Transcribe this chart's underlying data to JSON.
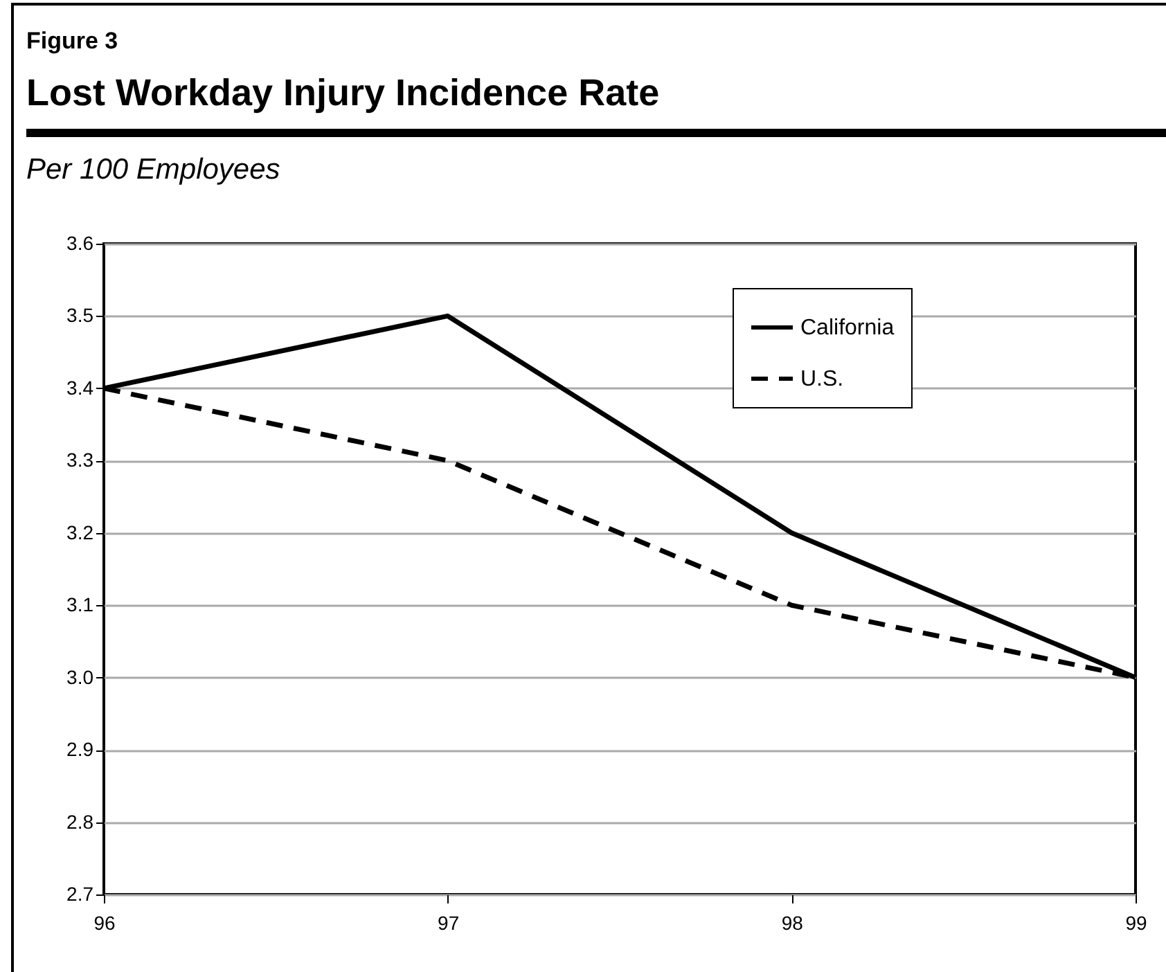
{
  "chart_data": {
    "type": "line",
    "title": "Lost Workday Injury Incidence Rate",
    "annotations": [
      "Figure 3"
    ],
    "ylabel": "Per 100 Employees",
    "categories": [
      "96",
      "97",
      "98",
      "99"
    ],
    "series": [
      {
        "name": "California",
        "color": "#000000",
        "line_style": "solid",
        "values": [
          3.4,
          3.5,
          3.2,
          3.0
        ]
      },
      {
        "name": "U.S.",
        "color": "#000000",
        "line_style": "dashed",
        "values": [
          3.4,
          3.3,
          3.1,
          3.0
        ]
      }
    ],
    "ylim": [
      2.7,
      3.6
    ],
    "yticks": [
      {
        "value": 2.7,
        "label": "2.7"
      },
      {
        "value": 2.8,
        "label": "2.8"
      },
      {
        "value": 2.9,
        "label": "2.9"
      },
      {
        "value": 3,
        "label": "3.0"
      },
      {
        "value": 3.1,
        "label": "3.1"
      },
      {
        "value": 3.2,
        "label": "3.2"
      },
      {
        "value": 3.3,
        "label": "3.3"
      },
      {
        "value": 3.4,
        "label": "3.4"
      },
      {
        "value": 3.5,
        "label": "3.5"
      },
      {
        "value": 3.6,
        "label": "3.6"
      }
    ],
    "grid": "y",
    "legend": "top right"
  }
}
